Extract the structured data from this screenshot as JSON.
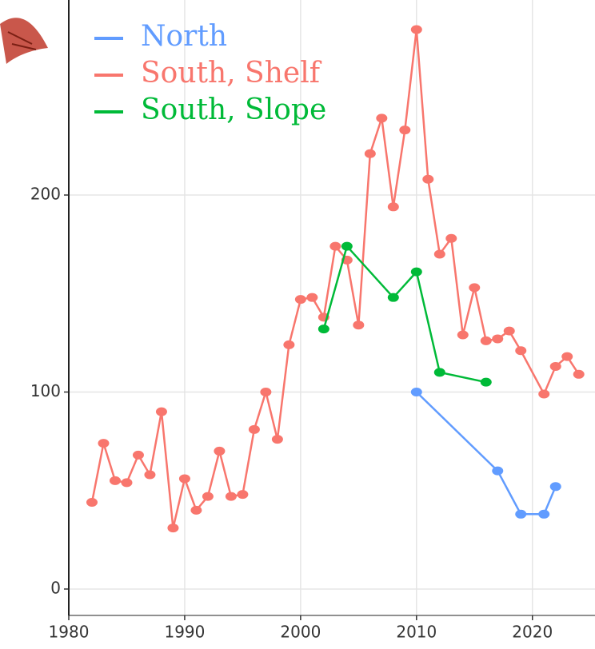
{
  "chart_data": {
    "type": "line",
    "series": [
      {
        "name": "North",
        "color": "#619cff",
        "x": [
          2010,
          2017,
          2019,
          2021,
          2022
        ],
        "values": [
          100,
          60,
          38,
          38,
          52
        ]
      },
      {
        "name": "South, Shelf",
        "color": "#f8766d",
        "x": [
          1982,
          1983,
          1984,
          1985,
          1986,
          1987,
          1988,
          1989,
          1990,
          1991,
          1992,
          1993,
          1994,
          1995,
          1996,
          1997,
          1998,
          1999,
          2000,
          2001,
          2002,
          2003,
          2004,
          2005,
          2006,
          2007,
          2008,
          2009,
          2010,
          2011,
          2012,
          2013,
          2014,
          2015,
          2016,
          2017,
          2018,
          2019,
          2021,
          2022,
          2023,
          2024
        ],
        "values": [
          44,
          74,
          55,
          54,
          68,
          58,
          90,
          31,
          56,
          40,
          47,
          70,
          47,
          48,
          81,
          100,
          76,
          124,
          147,
          148,
          138,
          174,
          167,
          134,
          221,
          239,
          194,
          233,
          284,
          208,
          170,
          178,
          129,
          153,
          126,
          127,
          131,
          121,
          99,
          113,
          118,
          109
        ]
      },
      {
        "name": "South, Slope",
        "color": "#00ba38",
        "x": [
          2002,
          2004,
          2008,
          2010,
          2012,
          2016
        ],
        "values": [
          132,
          174,
          148,
          161,
          110,
          105
        ]
      }
    ],
    "xlim": [
      1980,
      2025.4
    ],
    "xticks": [
      1980,
      1990,
      2000,
      2010,
      2020
    ],
    "ylim": [
      -13.4,
      299
    ],
    "yticks": [
      0,
      100,
      200
    ],
    "grid": true,
    "legend": "top-left"
  }
}
